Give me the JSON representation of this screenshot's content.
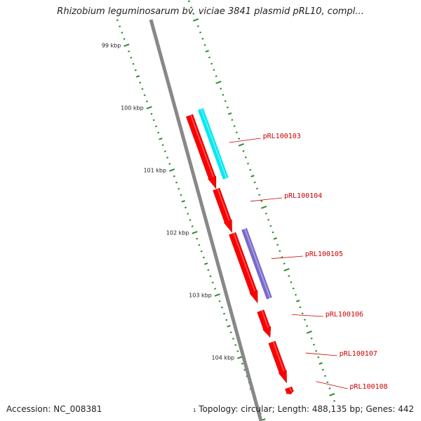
{
  "title": "Rhizobium leguminosarum bv. viciae 3841 plasmid pRL10, compl...",
  "footer": {
    "accession": "Accession: NC_008381",
    "topology": "Topology: circular; Length: 488,135 bp; Genes: 442",
    "edge_label": "1"
  },
  "colors": {
    "forward_gene": "#ff0000",
    "highlight_cyan": "#00e8f0",
    "highlight_purple": "#7b68cc",
    "label": "#cc0000",
    "ruler": "#2e8b2e",
    "backbone": "#888888"
  },
  "ruler_labels": [
    {
      "text": "99 kbp",
      "kbp": 99
    },
    {
      "text": "100 kbp",
      "kbp": 100
    },
    {
      "text": "101 kbp",
      "kbp": 101
    },
    {
      "text": "102 kbp",
      "kbp": 102
    },
    {
      "text": "103 kbp",
      "kbp": 103
    },
    {
      "text": "104 kbp",
      "kbp": 104
    }
  ],
  "genes": [
    {
      "name": "pRL100103",
      "start_kbp": 100.32,
      "end_kbp": 101.49
    },
    {
      "name": "pRL100104",
      "start_kbp": 101.5,
      "end_kbp": 102.19
    },
    {
      "name": "pRL100105",
      "start_kbp": 102.21,
      "end_kbp": 103.32
    },
    {
      "name": "pRL100106",
      "start_kbp": 103.45,
      "end_kbp": 103.87
    },
    {
      "name": "pRL100107",
      "start_kbp": 103.95,
      "end_kbp": 104.6
    },
    {
      "name": "pRL100108",
      "start_kbp": 104.68,
      "end_kbp": 104.78
    }
  ],
  "highlights": [
    {
      "color_key": "highlight_cyan",
      "start_kbp": 100.28,
      "end_kbp": 101.4
    },
    {
      "color_key": "highlight_purple",
      "start_kbp": 102.2,
      "end_kbp": 103.32
    }
  ]
}
